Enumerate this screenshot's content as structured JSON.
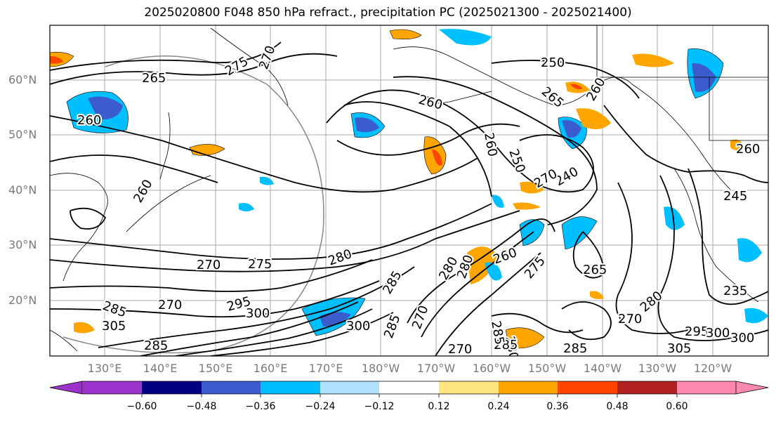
{
  "title": "2025020800 F048 850 hPa refract., precipitation PC (2025021300 - 2025021400)",
  "lat_labels": [
    "60°N",
    "50°N",
    "40°N",
    "30°N",
    "20°N"
  ],
  "lon_labels": [
    "130°E",
    "140°E",
    "150°E",
    "160°E",
    "170°E",
    "180°W",
    "170°W",
    "160°W",
    "150°W",
    "140°W",
    "130°W",
    "120°W"
  ],
  "contour_labels": [
    "265",
    "260",
    "275",
    "270",
    "250",
    "260",
    "265",
    "260",
    "260",
    "250",
    "240",
    "270",
    "245",
    "260",
    "260",
    "270",
    "275",
    "280",
    "295",
    "285",
    "280",
    "285",
    "270",
    "280",
    "260",
    "275",
    "265",
    "285",
    "300",
    "305",
    "285",
    "300",
    "300",
    "270",
    "280",
    "285",
    "270",
    "280",
    "295",
    "300",
    "305",
    "285",
    "235",
    "270",
    "285"
  ],
  "colorbar": {
    "ticks": [
      "−0.60",
      "−0.48",
      "−0.36",
      "−0.24",
      "−0.12",
      "0.12",
      "0.24",
      "0.36",
      "0.48",
      "0.60"
    ],
    "colors": [
      "#9933cc",
      "#000080",
      "#3a5ccc",
      "#00bfff",
      "#b0e0ff",
      "#ffffff",
      "#ffe680",
      "#ffa500",
      "#ff4500",
      "#b22222",
      "#ff88b0"
    ]
  }
}
